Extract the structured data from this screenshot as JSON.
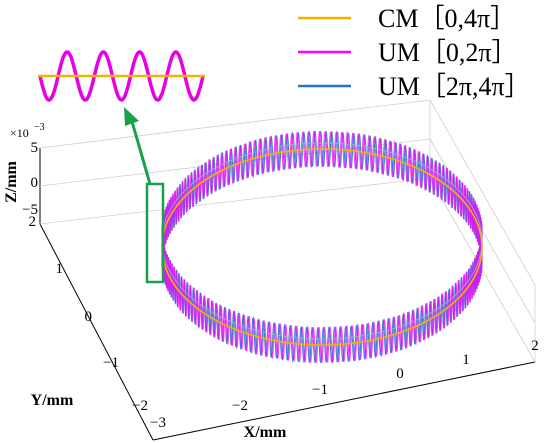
{
  "chart_data": {
    "type": "line",
    "projection": "3d",
    "legend_position": "top-right",
    "grid": true,
    "xlabel": "X/mm",
    "ylabel": "Y/mm",
    "zlabel": "Z/mm",
    "z_scale_label": "×10",
    "z_scale_exponent": "−3",
    "x_ticks": [
      "−3",
      "−2",
      "−1",
      "0",
      "1",
      "2"
    ],
    "y_ticks": [
      "−2",
      "−1",
      "0",
      "1",
      "2"
    ],
    "z_ticks": [
      "5",
      "0",
      "−5"
    ],
    "xlim": [
      -3,
      2
    ],
    "ylim": [
      -2,
      2
    ],
    "zlim": [
      -0.005,
      0.005
    ],
    "series": [
      {
        "name": "CM［0,4π］",
        "color": "#f5b000",
        "shape": "circle",
        "radius": 2,
        "z_amplitude": 0
      },
      {
        "name": "UM［0,2π］",
        "color": "#ff00ff",
        "shape": "oscillating-ring",
        "radius": 2,
        "z_amplitude": 0.005
      },
      {
        "name": "UM［2π,4π］",
        "color": "#1f77c8",
        "shape": "oscillating-ring",
        "radius": 2,
        "z_amplitude": 0.005
      }
    ],
    "inset": {
      "type": "sine-wave",
      "wave_color": "#e600e6",
      "line_color": "#f5b000",
      "arrow_color": "#1aa04a"
    }
  }
}
